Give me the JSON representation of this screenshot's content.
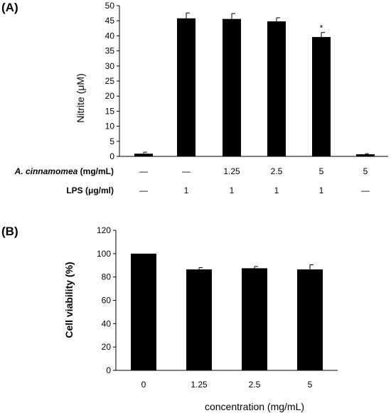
{
  "chart_data": [
    {
      "panel": "(A)",
      "type": "bar",
      "ylabel": "Nitrite (μM)",
      "ylim": [
        0,
        50
      ],
      "yticks": [
        0,
        5,
        10,
        15,
        20,
        25,
        30,
        35,
        40,
        45,
        50
      ],
      "grid": false,
      "values": [
        0.9,
        45.8,
        45.6,
        44.8,
        39.6,
        0.7
      ],
      "errors": [
        0.5,
        1.8,
        1.8,
        1.2,
        1.5,
        0.2
      ],
      "annotations": [
        "",
        "",
        "",
        "",
        "*",
        ""
      ],
      "conditions": [
        {
          "label_italic": "A. cinnamomea",
          "label_rest": " (mg/mL)",
          "values": [
            "—",
            "—",
            "1.25",
            "2.5",
            "5",
            "5"
          ]
        },
        {
          "label_italic": "",
          "label_rest": "LPS (μg/ml)",
          "values": [
            "—",
            "1",
            "1",
            "1",
            "1",
            "—"
          ]
        }
      ]
    },
    {
      "panel": "(B)",
      "type": "bar",
      "ylabel": "Cell viability (%)",
      "xlabel": "concentration (mg/mL)",
      "ylim": [
        0,
        120
      ],
      "yticks": [
        0,
        20,
        40,
        60,
        80,
        100,
        120
      ],
      "grid": false,
      "categories": [
        "0",
        "1.25",
        "2.5",
        "5"
      ],
      "values": [
        100,
        86.5,
        87.5,
        86.5
      ],
      "errors": [
        0,
        1.5,
        1.5,
        4.0
      ]
    }
  ]
}
